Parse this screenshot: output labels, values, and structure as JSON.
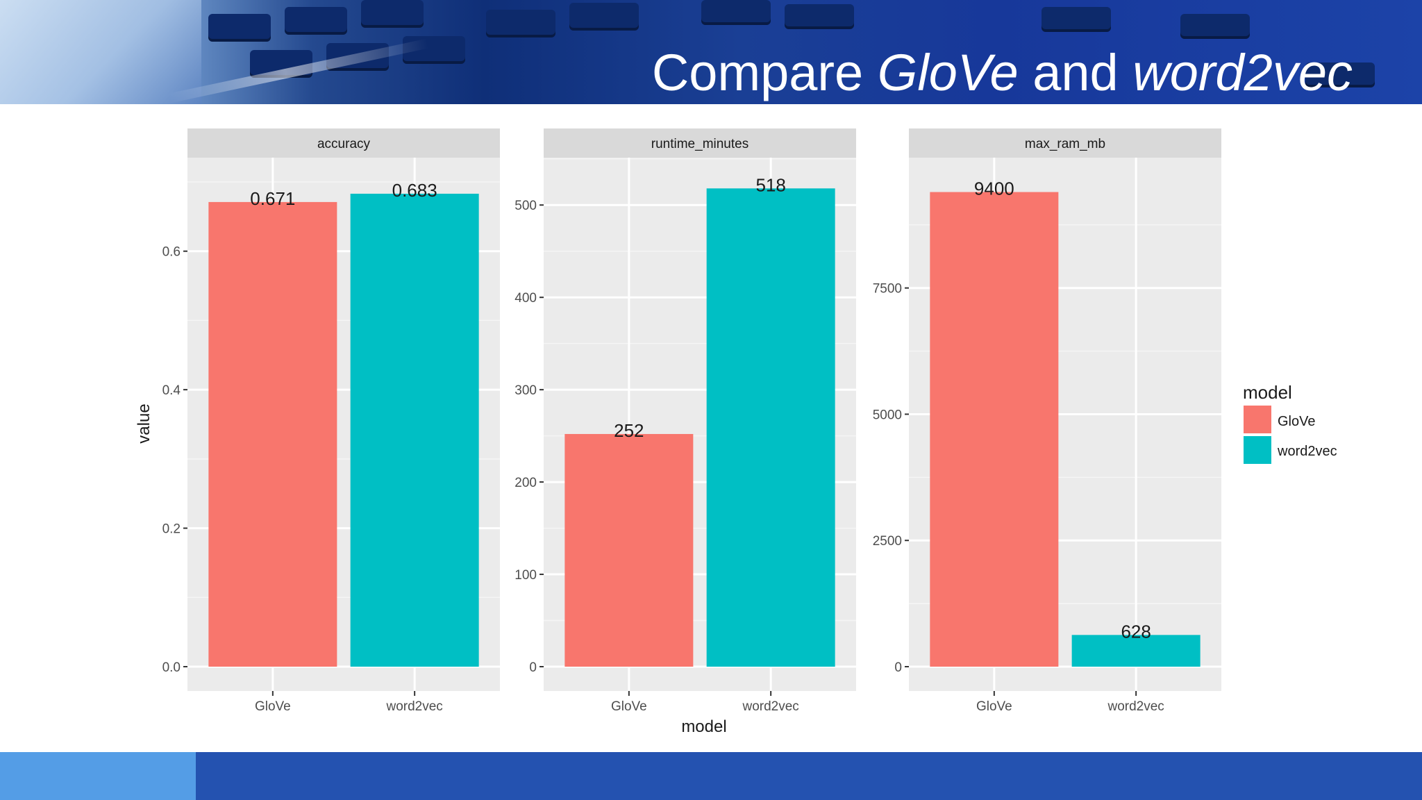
{
  "slide": {
    "title_part1": "Compare ",
    "title_glove": "GloVe",
    "title_part2": " and ",
    "title_word2vec": "word2vec"
  },
  "chart_data": {
    "type": "bar",
    "xlabel": "model",
    "ylabel": "value",
    "categories": [
      "GloVe",
      "word2vec"
    ],
    "legend": {
      "title": "model",
      "position": "right",
      "entries": [
        {
          "label": "GloVe",
          "color": "#f8766d"
        },
        {
          "label": "word2vec",
          "color": "#00bfc4"
        }
      ]
    },
    "grid": true,
    "panels": [
      {
        "facet": "accuracy",
        "values": [
          0.671,
          0.683
        ],
        "labels": [
          "0.671",
          "0.683"
        ],
        "ylim": [
          0,
          0.7
        ],
        "yticks": [
          0.0,
          0.2,
          0.4,
          0.6
        ],
        "ytick_labels": [
          "0.0",
          "0.2",
          "0.4",
          "0.6"
        ]
      },
      {
        "facet": "runtime_minutes",
        "values": [
          252,
          518
        ],
        "labels": [
          "252",
          "518"
        ],
        "ylim": [
          0,
          525
        ],
        "yticks": [
          0,
          100,
          200,
          300,
          400,
          500
        ],
        "ytick_labels": [
          "0",
          "100",
          "200",
          "300",
          "400",
          "500"
        ]
      },
      {
        "facet": "max_ram_mb",
        "values": [
          9400,
          628
        ],
        "labels": [
          "9400",
          "628"
        ],
        "ylim": [
          0,
          9600
        ],
        "yticks": [
          0,
          2500,
          5000,
          7500
        ],
        "ytick_labels": [
          "0",
          "2500",
          "5000",
          "7500"
        ]
      }
    ]
  }
}
